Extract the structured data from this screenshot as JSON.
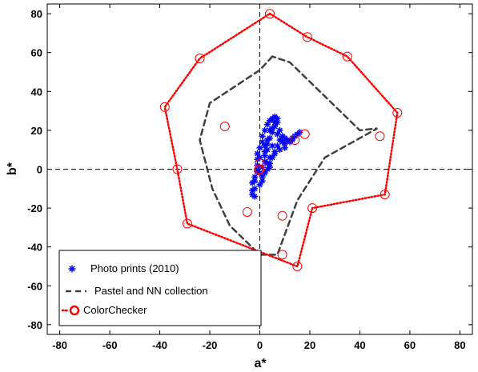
{
  "chart_data": {
    "type": "scatter",
    "xlabel": "a*",
    "ylabel": "b*",
    "xlim": [
      -85,
      85
    ],
    "ylim": [
      -85,
      85
    ],
    "xticks": [
      -80,
      -60,
      -40,
      -20,
      0,
      20,
      40,
      60,
      80
    ],
    "yticks": [
      -80,
      -60,
      -40,
      -20,
      0,
      20,
      40,
      60,
      80
    ],
    "grid": false,
    "legend_position": "bottom-left",
    "reference_lines": {
      "x": 0,
      "y": 0,
      "style": "dashed"
    },
    "series": [
      {
        "name": "Photo prints (2010)",
        "kind": "points",
        "marker": "asterisk",
        "color": "#0000ff",
        "points": [
          [
            -3,
            -13
          ],
          [
            -2,
            -10
          ],
          [
            -3,
            -7
          ],
          [
            -2,
            -4
          ],
          [
            -1,
            -1
          ],
          [
            -1,
            2
          ],
          [
            -1,
            5
          ],
          [
            -1,
            8
          ],
          [
            0,
            11
          ],
          [
            1,
            14
          ],
          [
            1,
            17
          ],
          [
            2,
            20
          ],
          [
            3,
            23
          ],
          [
            4,
            25
          ],
          [
            5,
            26
          ],
          [
            6,
            27
          ],
          [
            7,
            26
          ],
          [
            7,
            24
          ],
          [
            6,
            22
          ],
          [
            5,
            19
          ],
          [
            4,
            16
          ],
          [
            3,
            13
          ],
          [
            3,
            10
          ],
          [
            2,
            7
          ],
          [
            2,
            4
          ],
          [
            1,
            1
          ],
          [
            0,
            -2
          ],
          [
            1,
            -4
          ],
          [
            2,
            -2
          ],
          [
            3,
            0
          ],
          [
            4,
            3
          ],
          [
            5,
            6
          ],
          [
            6,
            9
          ],
          [
            7,
            12
          ],
          [
            8,
            15
          ],
          [
            9,
            17
          ],
          [
            10,
            16
          ],
          [
            11,
            15
          ],
          [
            12,
            14
          ],
          [
            13,
            16
          ],
          [
            14,
            17
          ],
          [
            15,
            18
          ],
          [
            16,
            19
          ],
          [
            13,
            15
          ],
          [
            10,
            13
          ],
          [
            8,
            10
          ],
          [
            6,
            8
          ],
          [
            4,
            6
          ],
          [
            2,
            9
          ],
          [
            3,
            15
          ],
          [
            4,
            20
          ],
          [
            2,
            12
          ],
          [
            0,
            6
          ],
          [
            -1,
            0
          ],
          [
            -2,
            -6
          ],
          [
            -3,
            -11
          ],
          [
            -2,
            -14
          ],
          [
            6,
            24
          ],
          [
            8,
            20
          ],
          [
            9,
            14
          ],
          [
            5,
            12
          ],
          [
            3,
            3
          ],
          [
            1,
            -6
          ],
          [
            0,
            -8
          ],
          [
            5,
            21
          ],
          [
            7,
            18
          ],
          [
            10,
            11
          ],
          [
            4,
            1
          ]
        ]
      },
      {
        "name": "Pastel and NN collection",
        "kind": "polygon",
        "line_style": "dashed",
        "color": "#404040",
        "points": [
          [
            5,
            58
          ],
          [
            0,
            51
          ],
          [
            -20,
            34
          ],
          [
            -24,
            15
          ],
          [
            -19,
            -10
          ],
          [
            -12,
            -29
          ],
          [
            0,
            -44
          ],
          [
            7,
            -44
          ],
          [
            15,
            -16
          ],
          [
            26,
            6
          ],
          [
            47,
            21
          ],
          [
            40,
            20
          ],
          [
            20,
            45
          ],
          [
            12,
            55
          ]
        ]
      },
      {
        "name": "ColorChecker",
        "kind": "polygon-with-points",
        "line_style": "dotted",
        "color": "#ff0000",
        "marker": "open-circle",
        "points": [
          [
            4,
            80
          ],
          [
            19,
            68
          ],
          [
            35,
            58
          ],
          [
            55,
            29
          ],
          [
            50,
            -13
          ],
          [
            21,
            -20
          ],
          [
            15,
            -50
          ],
          [
            -29,
            -28
          ],
          [
            -33,
            0
          ],
          [
            -38,
            32
          ],
          [
            -24,
            57
          ]
        ],
        "extra_points": [
          [
            -14,
            22
          ],
          [
            18,
            18
          ],
          [
            48,
            17
          ],
          [
            14,
            15
          ],
          [
            -5,
            -22
          ],
          [
            9,
            -24
          ],
          [
            9,
            -44
          ],
          [
            0,
            3
          ],
          [
            0,
            0
          ],
          [
            -0.5,
            -0.5
          ]
        ]
      }
    ]
  }
}
